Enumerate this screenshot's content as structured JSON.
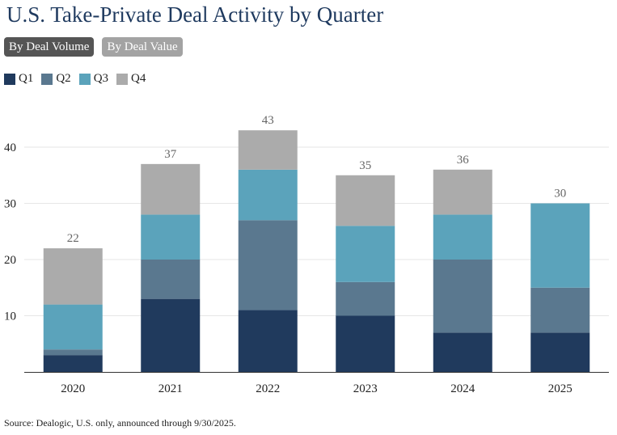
{
  "title": "U.S. Take-Private Deal Activity by Quarter",
  "toggles": {
    "volume_label": "By Deal Volume",
    "value_label": "By Deal Value",
    "selected": "volume"
  },
  "colors": {
    "Q1": "#203a5d",
    "Q2": "#5a788f",
    "Q3": "#5ba3bb",
    "Q4": "#ababab",
    "total_label": "#666666",
    "grid": "#e6e6e6"
  },
  "source": "Source: Dealogic, U.S. only, announced through 9/30/2025.",
  "chart_data": {
    "type": "bar",
    "stacked": true,
    "categories": [
      "2020",
      "2021",
      "2022",
      "2023",
      "2024",
      "2025"
    ],
    "series": [
      {
        "name": "Q1",
        "values": [
          3,
          13,
          11,
          10,
          7,
          7
        ]
      },
      {
        "name": "Q2",
        "values": [
          1,
          7,
          16,
          6,
          13,
          8
        ]
      },
      {
        "name": "Q3",
        "values": [
          8,
          8,
          9,
          10,
          8,
          15
        ]
      },
      {
        "name": "Q4",
        "values": [
          10,
          9,
          7,
          9,
          8,
          0
        ]
      }
    ],
    "totals": [
      "22",
      "37",
      "43",
      "35",
      "36",
      "30"
    ],
    "yticks": [
      "10",
      "20",
      "30",
      "40"
    ],
    "ylim": [
      0,
      45
    ],
    "grid": true,
    "legend": "top-left",
    "xlabel": "",
    "ylabel": ""
  }
}
